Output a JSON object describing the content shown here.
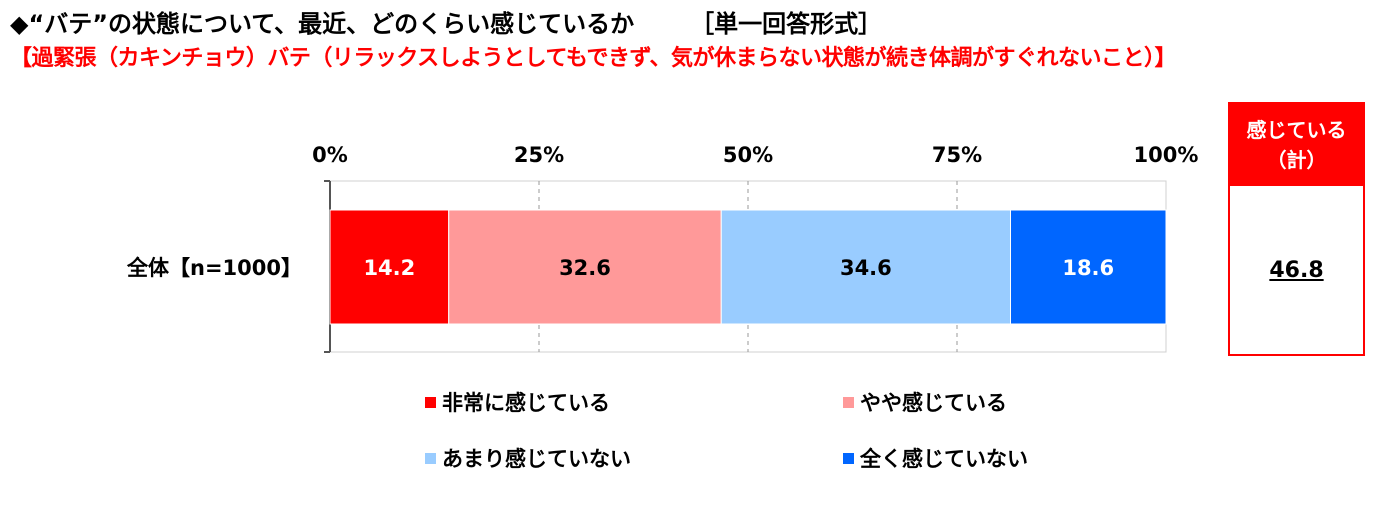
{
  "header": {
    "title": "◆“バテ”の状態について、最近、どのくらい感じているか",
    "format": "［単一回答形式］",
    "subtitle": "【過緊張（カキンチョウ）バテ（リラックスしようとしてもできず、気が休まらない状態が続き体調がすぐれないこと）】"
  },
  "chart_data": {
    "type": "bar",
    "orientation": "horizontal-stacked-100",
    "x_ticks": [
      "0%",
      "25%",
      "50%",
      "75%",
      "100%"
    ],
    "xlim": [
      0,
      100
    ],
    "categories": [
      "全体【n=1000】"
    ],
    "series": [
      {
        "name": "非常に感じている",
        "values": [
          14.2
        ],
        "label": "14.2",
        "color": "#ff0000"
      },
      {
        "name": "やや感じている",
        "values": [
          32.6
        ],
        "label": "32.6",
        "color": "#ff9999"
      },
      {
        "name": "あまり感じていない",
        "values": [
          34.6
        ],
        "label": "34.6",
        "color": "#99ccff"
      },
      {
        "name": "全く感じていない",
        "values": [
          18.6
        ],
        "label": "18.6",
        "color": "#0066ff"
      }
    ],
    "gridlines": "dashed-vertical"
  },
  "total": {
    "header_line1": "感じている",
    "header_line2": "（計）",
    "value": "46.8"
  }
}
